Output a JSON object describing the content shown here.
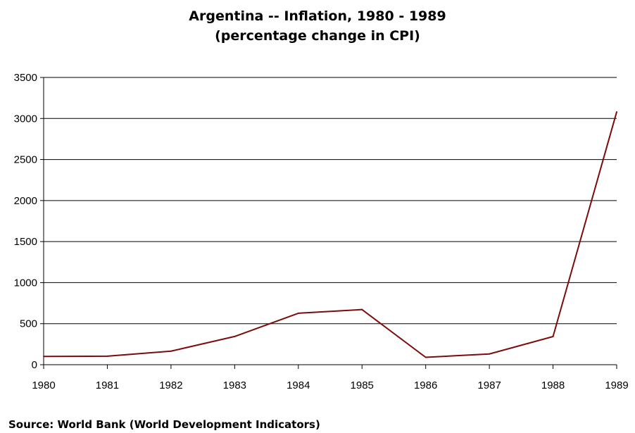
{
  "chart_data": {
    "type": "line",
    "title": "Argentina -- Inflation, 1980 - 1989",
    "subtitle": "(percentage change in CPI)",
    "xlabel": "",
    "ylabel": "",
    "x": [
      "1980",
      "1981",
      "1982",
      "1983",
      "1984",
      "1985",
      "1986",
      "1987",
      "1988",
      "1989"
    ],
    "series": [
      {
        "values": [
          101,
          104,
          165,
          344,
          627,
          672,
          90,
          131,
          343,
          3080
        ]
      }
    ],
    "ylim": [
      0,
      3500
    ],
    "yticks": [
      "0",
      "500",
      "1000",
      "1500",
      "2000",
      "2500",
      "3000",
      "3500"
    ],
    "grid": true,
    "legend": "none",
    "line_color": "#7b0c0c"
  },
  "source": "Source: World Bank (World Development Indicators)"
}
